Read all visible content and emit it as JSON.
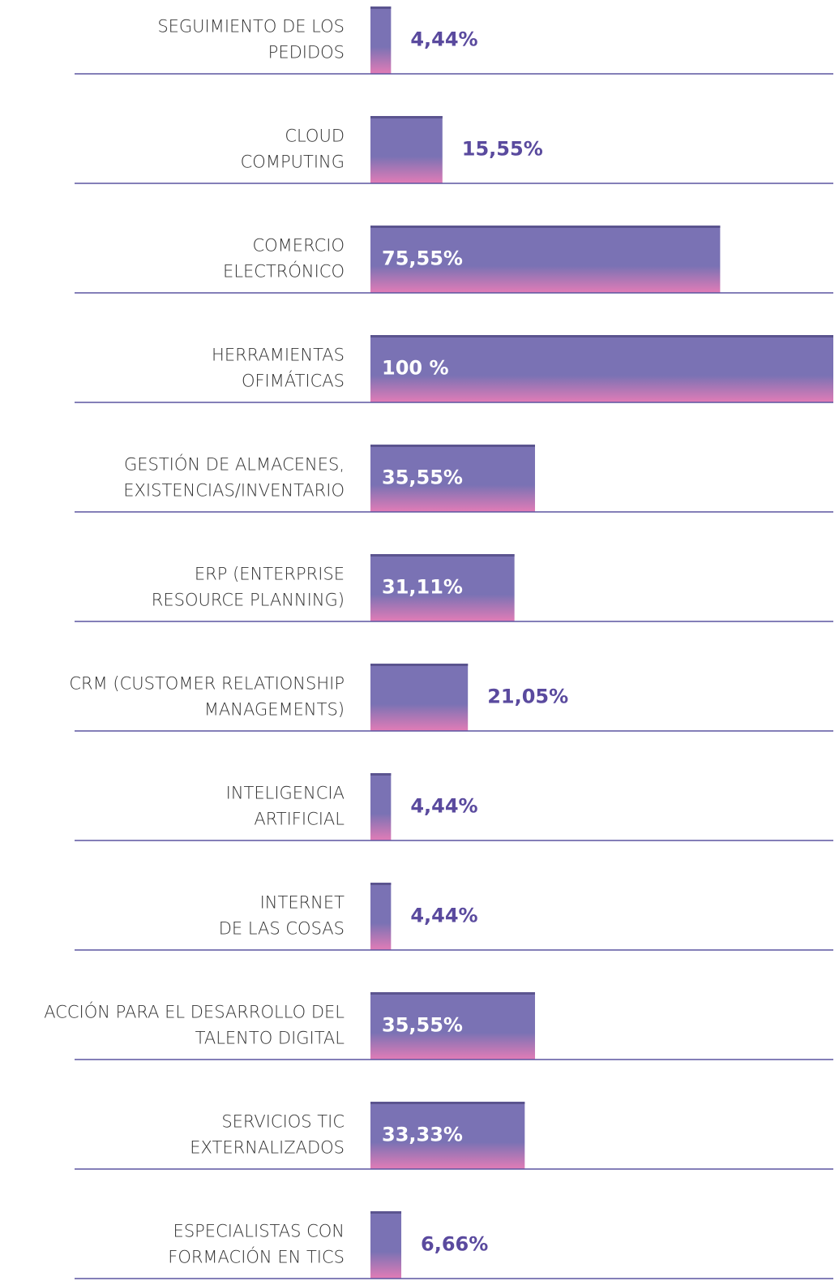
{
  "chart_data": {
    "type": "barh",
    "categories": [
      [
        "SEGUIMIENTO DE LOS",
        "PEDIDOS"
      ],
      [
        "CLOUD",
        "COMPUTING"
      ],
      [
        "COMERCIO",
        "ELECTRÓNICO"
      ],
      [
        "HERRAMIENTAS",
        "OFIMÁTICAS"
      ],
      [
        "GESTIÓN DE ALMACENES,",
        "EXISTENCIAS/INVENTARIO"
      ],
      [
        "ERP (ENTERPRISE",
        "RESOURCE PLANNING)"
      ],
      [
        "CRM (CUSTOMER RELATIONSHIP",
        "MANAGEMENTS)"
      ],
      [
        "INTELIGENCIA",
        "ARTIFICIAL"
      ],
      [
        "INTERNET",
        "DE LAS COSAS"
      ],
      [
        "ACCIÓN PARA EL DESARROLLO DEL",
        "TALENTO DIGITAL"
      ],
      [
        "SERVICIOS TIC",
        "EXTERNALIZADOS"
      ],
      [
        "ESPECIALISTAS CON",
        "FORMACIÓN EN TICS"
      ]
    ],
    "values": [
      4.44,
      15.55,
      75.55,
      100,
      35.55,
      31.11,
      21.05,
      4.44,
      4.44,
      35.55,
      33.33,
      6.66
    ],
    "value_labels": [
      "4,44%",
      "15,55%",
      "75,55%",
      "100 %",
      "35,55%",
      "31,11%",
      "21,05%",
      "4,44%",
      "4,44%",
      "35,55%",
      "33,33%",
      "6,66%"
    ],
    "xlim": [
      0,
      100
    ],
    "colors": {
      "top": "#7a72b4",
      "bottom": "#e27cb6",
      "edge": "#5b548f",
      "label": "#5a4a9e",
      "inside_label": "#ffffff",
      "baseline": "#5c55a0"
    }
  }
}
